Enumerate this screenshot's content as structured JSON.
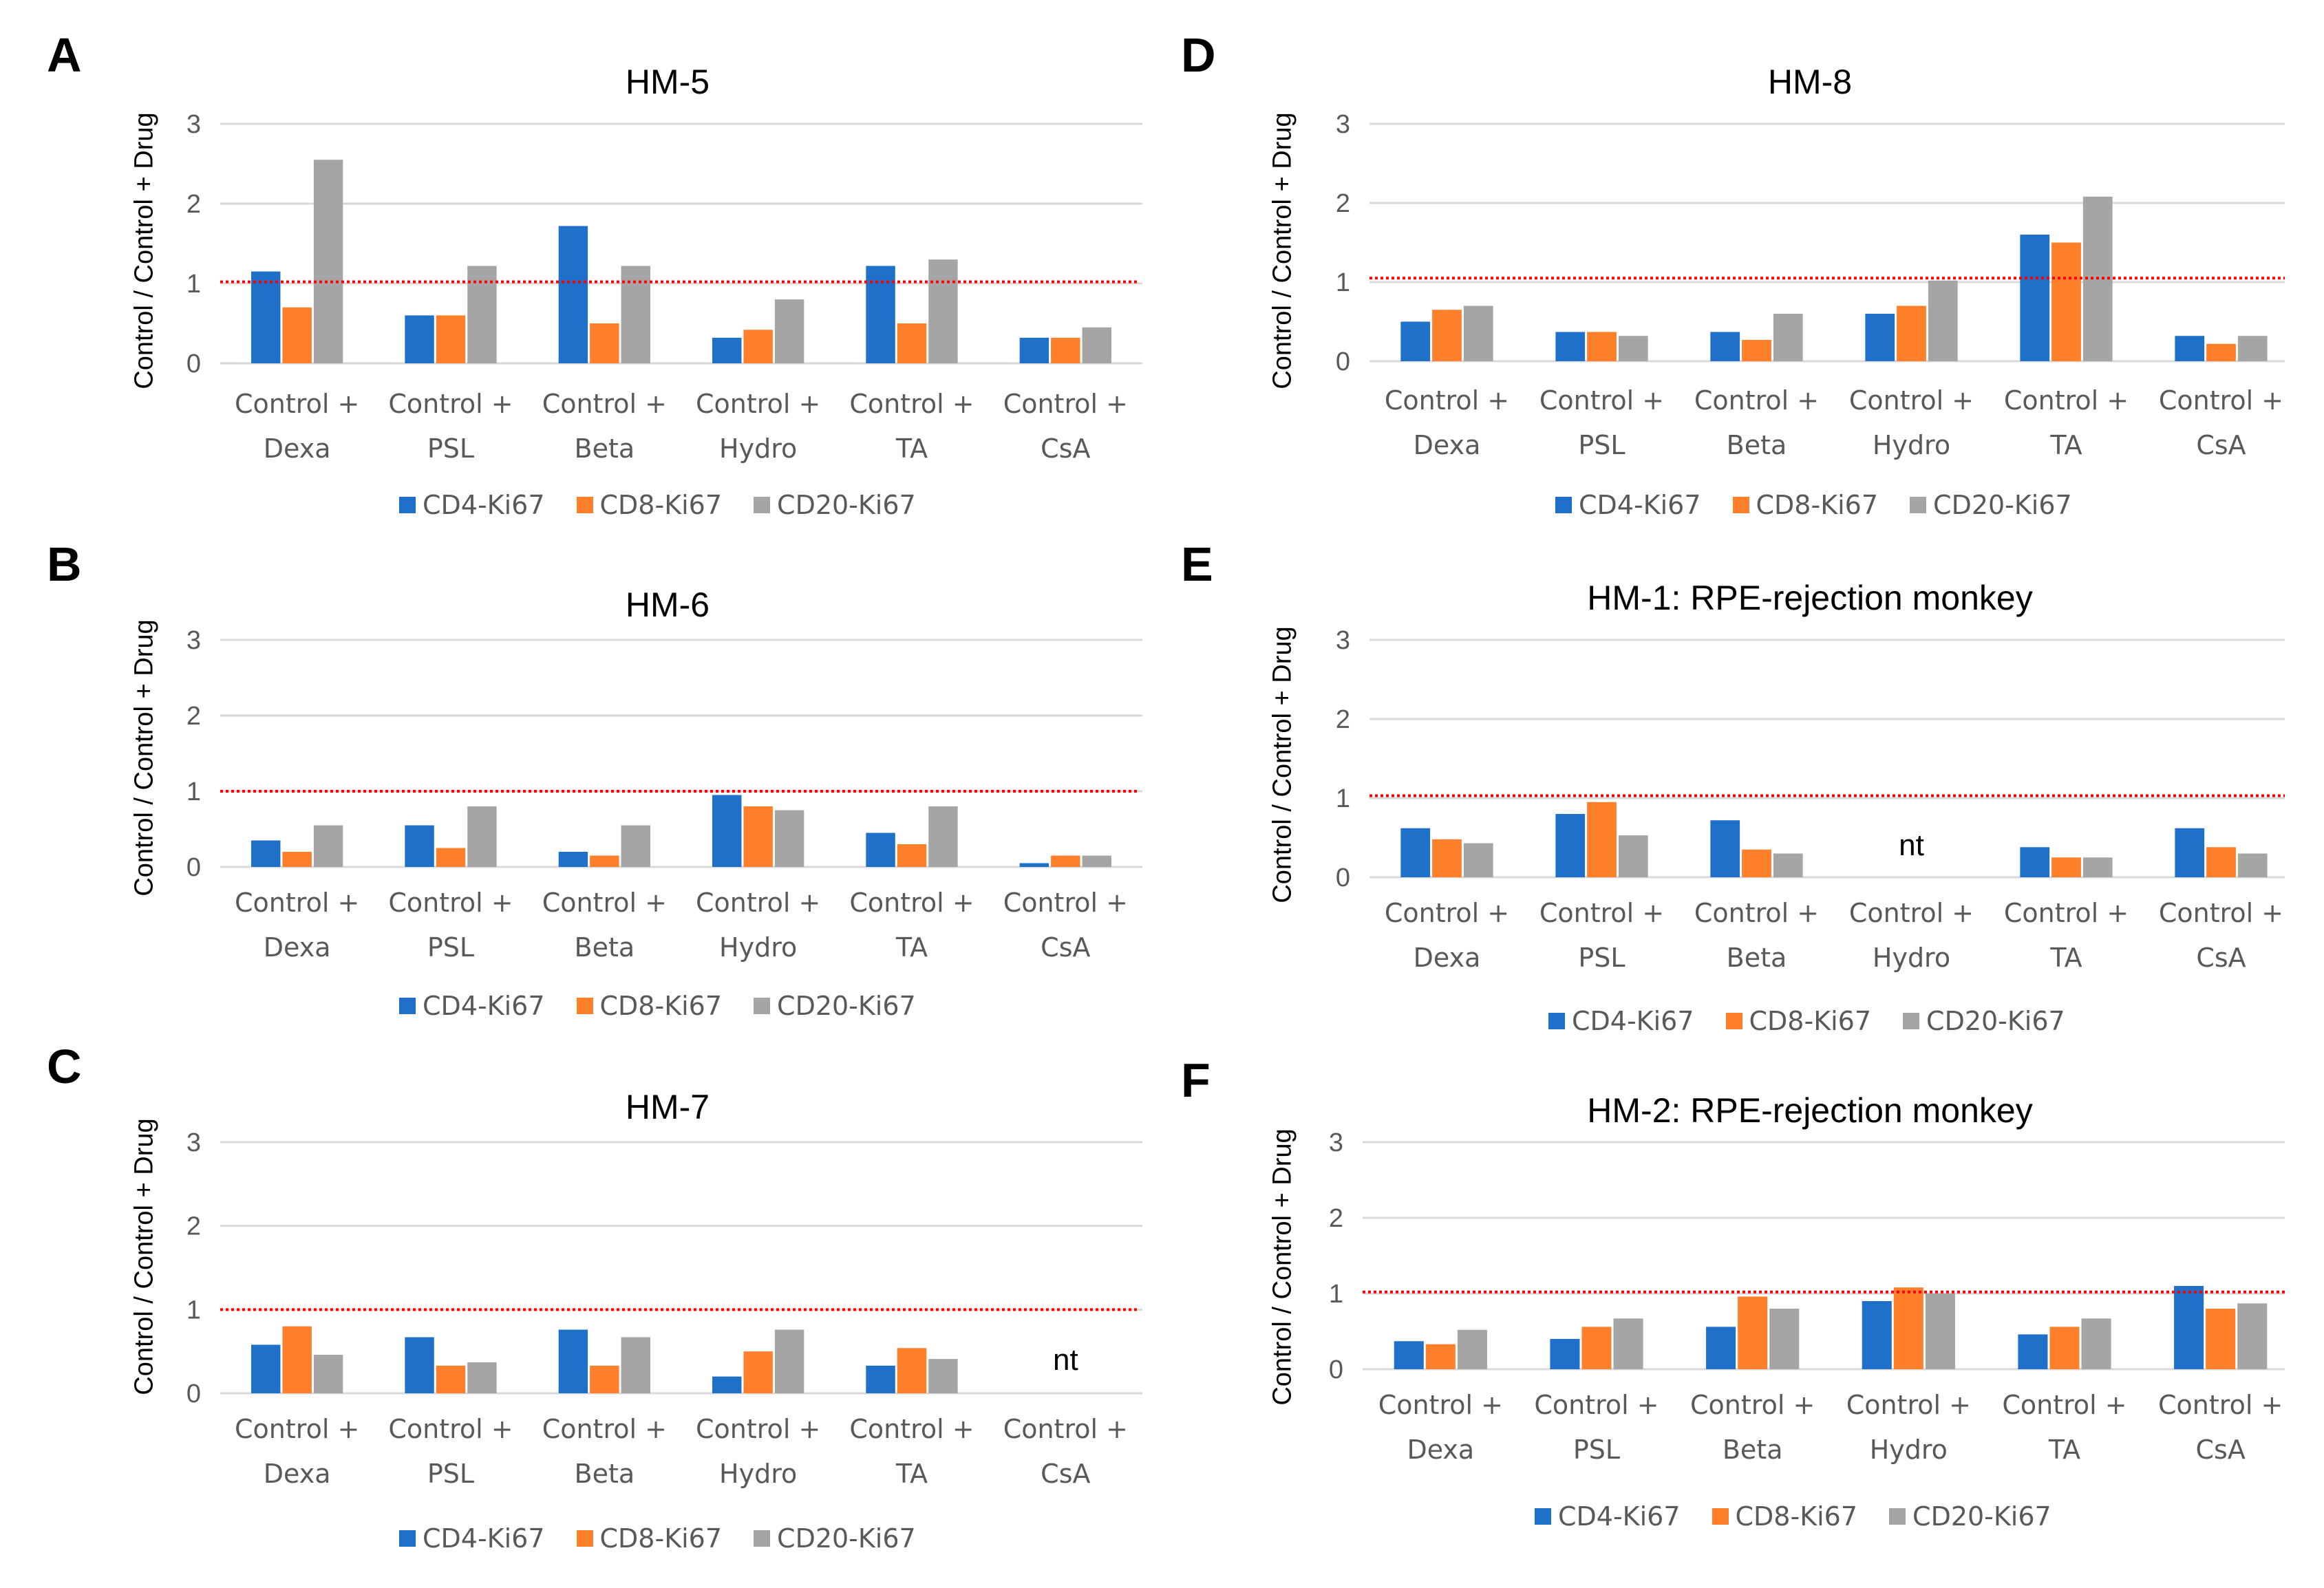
{
  "colors": {
    "cd4": "#1F70C8",
    "cd8": "#FF7F2A",
    "cd20": "#A5A5A5",
    "reference": "#FF0000",
    "grid": "#D9D9D9"
  },
  "y_axis_label": "Control / Control + Drug",
  "legend": [
    "CD4-Ki67",
    "CD8-Ki67",
    "CD20-Ki67"
  ],
  "chart_data": [
    {
      "panel": "A",
      "type": "bar",
      "title": "HM-5",
      "categories": [
        [
          "Control +",
          "Dexa"
        ],
        [
          "Control +",
          "PSL"
        ],
        [
          "Control +",
          "Beta"
        ],
        [
          "Control +",
          "Hydro"
        ],
        [
          "Control +",
          "TA"
        ],
        [
          "Control +",
          "CsA"
        ]
      ],
      "series": [
        {
          "name": "CD4-Ki67",
          "values": [
            1.15,
            0.6,
            1.72,
            0.32,
            1.22,
            0.32
          ]
        },
        {
          "name": "CD8-Ki67",
          "values": [
            0.7,
            0.6,
            0.5,
            0.42,
            0.5,
            0.32
          ]
        },
        {
          "name": "CD20-Ki67",
          "values": [
            2.55,
            1.22,
            1.22,
            0.8,
            1.3,
            0.45
          ]
        }
      ],
      "ylim": [
        0,
        3
      ],
      "yticks": [
        "0",
        "1",
        "2",
        "3"
      ],
      "reference_line": 1.02,
      "not_tested": null
    },
    {
      "panel": "B",
      "type": "bar",
      "title": "HM-6",
      "categories": [
        [
          "Control +",
          "Dexa"
        ],
        [
          "Control +",
          "PSL"
        ],
        [
          "Control +",
          "Beta"
        ],
        [
          "Control +",
          "Hydro"
        ],
        [
          "Control +",
          "TA"
        ],
        [
          "Control +",
          "CsA"
        ]
      ],
      "series": [
        {
          "name": "CD4-Ki67",
          "values": [
            0.35,
            0.55,
            0.2,
            0.95,
            0.45,
            0.05
          ]
        },
        {
          "name": "CD8-Ki67",
          "values": [
            0.2,
            0.25,
            0.15,
            0.8,
            0.3,
            0.15
          ]
        },
        {
          "name": "CD20-Ki67",
          "values": [
            0.55,
            0.8,
            0.55,
            0.75,
            0.8,
            0.15
          ]
        }
      ],
      "ylim": [
        0,
        3
      ],
      "yticks": [
        "0",
        "1",
        "2",
        "3"
      ],
      "reference_line": 1.0,
      "not_tested": null
    },
    {
      "panel": "C",
      "type": "bar",
      "title": "HM-7",
      "categories": [
        [
          "Control +",
          "Dexa"
        ],
        [
          "Control +",
          "PSL"
        ],
        [
          "Control +",
          "Beta"
        ],
        [
          "Control +",
          "Hydro"
        ],
        [
          "Control +",
          "TA"
        ],
        [
          "Control +",
          "CsA"
        ]
      ],
      "series": [
        {
          "name": "CD4-Ki67",
          "values": [
            0.58,
            0.67,
            0.76,
            0.2,
            0.33,
            null
          ]
        },
        {
          "name": "CD8-Ki67",
          "values": [
            0.8,
            0.33,
            0.33,
            0.5,
            0.54,
            null
          ]
        },
        {
          "name": "CD20-Ki67",
          "values": [
            0.46,
            0.37,
            0.67,
            0.76,
            0.41,
            null
          ]
        }
      ],
      "ylim": [
        0,
        3
      ],
      "yticks": [
        "0",
        "1",
        "2",
        "3"
      ],
      "reference_line": 1.0,
      "not_tested": {
        "index": 5,
        "label": "nt"
      }
    },
    {
      "panel": "D",
      "type": "bar",
      "title": "HM-8",
      "categories": [
        [
          "Control +",
          "Dexa"
        ],
        [
          "Control +",
          "PSL"
        ],
        [
          "Control +",
          "Beta"
        ],
        [
          "Control +",
          "Hydro"
        ],
        [
          "Control +",
          "TA"
        ],
        [
          "Control +",
          "CsA"
        ]
      ],
      "series": [
        {
          "name": "CD4-Ki67",
          "values": [
            0.5,
            0.37,
            0.37,
            0.6,
            1.6,
            0.32
          ]
        },
        {
          "name": "CD8-Ki67",
          "values": [
            0.65,
            0.37,
            0.27,
            0.7,
            1.5,
            0.22
          ]
        },
        {
          "name": "CD20-Ki67",
          "values": [
            0.7,
            0.32,
            0.6,
            1.02,
            2.08,
            0.32
          ]
        }
      ],
      "ylim": [
        0,
        3
      ],
      "yticks": [
        "0",
        "1",
        "2",
        "3"
      ],
      "reference_line": 1.05,
      "not_tested": null
    },
    {
      "panel": "E",
      "type": "bar",
      "title": "HM-1: RPE-rejection monkey",
      "categories": [
        [
          "Control +",
          "Dexa"
        ],
        [
          "Control +",
          "PSL"
        ],
        [
          "Control +",
          "Beta"
        ],
        [
          "Control +",
          "Hydro"
        ],
        [
          "Control +",
          "TA"
        ],
        [
          "Control +",
          "CsA"
        ]
      ],
      "series": [
        {
          "name": "CD4-Ki67",
          "values": [
            0.62,
            0.8,
            0.72,
            null,
            0.38,
            0.62
          ]
        },
        {
          "name": "CD8-Ki67",
          "values": [
            0.48,
            0.95,
            0.35,
            null,
            0.25,
            0.38
          ]
        },
        {
          "name": "CD20-Ki67",
          "values": [
            0.43,
            0.53,
            0.3,
            null,
            0.25,
            0.3
          ]
        }
      ],
      "ylim": [
        0,
        3
      ],
      "yticks": [
        "0",
        "1",
        "2",
        "3"
      ],
      "reference_line": 1.03,
      "not_tested": {
        "index": 3,
        "label": "nt"
      }
    },
    {
      "panel": "F",
      "type": "bar",
      "title": "HM-2: RPE-rejection monkey",
      "categories": [
        [
          "Control +",
          "Dexa"
        ],
        [
          "Control +",
          "PSL"
        ],
        [
          "Control +",
          "Beta"
        ],
        [
          "Control +",
          "Hydro"
        ],
        [
          "Control +",
          "TA"
        ],
        [
          "Control +",
          "CsA"
        ]
      ],
      "series": [
        {
          "name": "CD4-Ki67",
          "values": [
            0.37,
            0.4,
            0.56,
            0.9,
            0.46,
            1.1
          ]
        },
        {
          "name": "CD8-Ki67",
          "values": [
            0.33,
            0.56,
            0.96,
            1.08,
            0.56,
            0.8
          ]
        },
        {
          "name": "CD20-Ki67",
          "values": [
            0.52,
            0.67,
            0.8,
            1.0,
            0.67,
            0.87
          ]
        }
      ],
      "ylim": [
        0,
        3
      ],
      "yticks": [
        "0",
        "1",
        "2",
        "3"
      ],
      "reference_line": 1.02,
      "not_tested": null
    }
  ]
}
